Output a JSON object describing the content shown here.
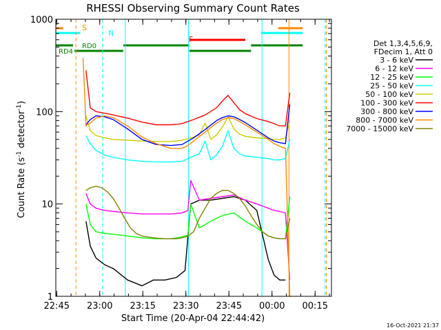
{
  "chart_data": {
    "type": "line",
    "title": "RHESSI Observing Summary Count Rates",
    "xlabel": "Start Time (20-Apr-04 22:44:42)",
    "ylabel_main": "Count Rate (s",
    "ylabel_sup1": "-1",
    "ylabel_mid": " detector",
    "ylabel_sup2": "-1",
    "ylabel_end": ")",
    "yscale": "log",
    "ylim": [
      1,
      1000
    ],
    "x_range_minutes": [
      0,
      96
    ],
    "x_ticks": [
      {
        "label": "22:45",
        "t": 0.3
      },
      {
        "label": "23:00",
        "t": 15.3
      },
      {
        "label": "23:15",
        "t": 30.3
      },
      {
        "label": "23:30",
        "t": 45.3
      },
      {
        "label": "23:45",
        "t": 60.3
      },
      {
        "label": "00:00",
        "t": 75.3
      },
      {
        "label": "00:15",
        "t": 90.3
      }
    ],
    "y_ticks": [
      {
        "label": "1",
        "v": 1
      },
      {
        "label": "10",
        "v": 10
      },
      {
        "label": "100",
        "v": 100
      },
      {
        "label": "1000",
        "v": 1000
      }
    ],
    "legend_header": [
      "Det 1,3,4,5,6,9,",
      "FDecim 1, Att 0"
    ],
    "series": [
      {
        "name": "3 - 6 keV",
        "color": "#000000",
        "x": [
          0,
          9.5,
          10.5,
          12,
          14,
          17,
          20,
          25,
          30,
          34,
          38,
          42,
          45,
          47,
          50,
          54,
          58,
          62,
          66,
          70,
          74,
          76,
          78,
          80,
          82,
          84
        ],
        "y": [
          null,
          null,
          6.5,
          3.5,
          2.6,
          2.2,
          2.0,
          1.5,
          1.3,
          1.5,
          1.5,
          1.6,
          1.9,
          10,
          11,
          11,
          11.5,
          12,
          11,
          8.5,
          2.5,
          1.7,
          1.5,
          1.5,
          null,
          null
        ]
      },
      {
        "name": "6 - 12 keV",
        "color": "#ff00ff",
        "x": [
          10.5,
          12,
          14,
          17,
          20,
          25,
          30,
          35,
          40,
          44,
          46,
          47,
          50,
          54,
          58,
          62,
          66,
          70,
          74,
          76,
          78,
          80,
          81.5
        ],
        "y": [
          13,
          10,
          9,
          8.5,
          8.3,
          8,
          7.8,
          7.8,
          7.8,
          8,
          8.5,
          18,
          11,
          11.5,
          12,
          12.5,
          11,
          10,
          9,
          8.5,
          8.3,
          8,
          1.5
        ]
      },
      {
        "name": "12 - 25 keV",
        "color": "#00ff00",
        "x": [
          10.5,
          12,
          14,
          17,
          20,
          25,
          30,
          35,
          40,
          44,
          46,
          47,
          50,
          54,
          58,
          62,
          66,
          70,
          74,
          76,
          78,
          80,
          81.5
        ],
        "y": [
          10,
          6,
          5,
          4.8,
          4.7,
          4.5,
          4.3,
          4.2,
          4.2,
          4.4,
          4.6,
          10,
          5.5,
          6.5,
          7.5,
          8,
          6.5,
          5.5,
          4.5,
          4.3,
          4.2,
          4.2,
          12
        ]
      },
      {
        "name": "25 - 50 keV",
        "color": "#00ffff",
        "x": [
          10.5,
          12,
          14,
          17,
          20,
          25,
          30,
          35,
          40,
          44,
          46,
          47,
          50,
          52,
          54,
          56,
          58,
          60,
          62,
          64,
          66,
          70,
          74,
          76,
          78,
          80,
          81.5
        ],
        "y": [
          55,
          45,
          38,
          34,
          32,
          30,
          29,
          28.5,
          28.5,
          29,
          31,
          32,
          35,
          48,
          30,
          34,
          42,
          62,
          40,
          35,
          33,
          32,
          31,
          30,
          30,
          31,
          50
        ]
      },
      {
        "name": "50 - 100 keV",
        "color": "#cccc00",
        "x": [
          10.5,
          12,
          14,
          17,
          20,
          25,
          30,
          35,
          40,
          44,
          46,
          48,
          50,
          52,
          54,
          56,
          58,
          60,
          62,
          64,
          66,
          70,
          74,
          76,
          78,
          80,
          81.5
        ],
        "y": [
          90,
          62,
          55,
          52,
          50,
          49,
          48,
          47.5,
          47.5,
          49,
          51,
          53,
          56,
          75,
          50,
          56,
          68,
          88,
          65,
          57,
          54,
          52,
          51,
          50,
          50,
          52,
          80
        ]
      },
      {
        "name": "100 - 300 keV",
        "color": "#ff0000",
        "x": [
          10.5,
          12,
          14,
          17,
          20,
          25,
          30,
          35,
          40,
          44,
          46,
          48,
          52,
          56,
          58,
          60,
          62,
          64,
          66,
          70,
          74,
          76,
          78,
          80,
          81.5
        ],
        "y": [
          280,
          110,
          100,
          96,
          92,
          85,
          77,
          72,
          72,
          74,
          78,
          82,
          92,
          110,
          130,
          150,
          125,
          105,
          95,
          84,
          78,
          74,
          70,
          70,
          160
        ]
      },
      {
        "name": "300 - 800 keV",
        "color": "#0000ff",
        "x": [
          10.5,
          12,
          14,
          17,
          20,
          25,
          30,
          35,
          40,
          44,
          46,
          48,
          52,
          56,
          58,
          60,
          62,
          64,
          66,
          70,
          74,
          76,
          78,
          80,
          81.5
        ],
        "y": [
          72,
          82,
          90,
          88,
          82,
          65,
          50,
          44,
          43,
          44,
          48,
          52,
          64,
          80,
          86,
          90,
          88,
          82,
          76,
          63,
          52,
          48,
          46,
          45,
          120
        ]
      },
      {
        "name": "800 - 7000 keV",
        "color": "#ff8800",
        "x": [
          9.5,
          10.5,
          12,
          14,
          17,
          20,
          25,
          30,
          35,
          40,
          44,
          46,
          48,
          52,
          56,
          58,
          60,
          62,
          64,
          66,
          70,
          74,
          76,
          78,
          80,
          81.5,
          82
        ],
        "y": [
          380,
          70,
          75,
          85,
          90,
          86,
          70,
          53,
          45,
          40,
          40,
          43,
          48,
          60,
          75,
          82,
          86,
          84,
          78,
          72,
          60,
          50,
          45,
          42,
          40,
          1,
          1
        ]
      },
      {
        "name": "7000 - 15000 keV",
        "color": "#808000",
        "x": [
          10.5,
          12,
          14,
          16,
          18,
          20,
          22,
          24,
          26,
          28,
          30,
          34,
          38,
          42,
          44,
          46,
          48,
          50,
          52,
          54,
          56,
          58,
          60,
          62,
          64,
          66,
          68,
          70,
          72,
          74,
          76,
          78,
          80,
          81.5
        ],
        "y": [
          14,
          15,
          15.5,
          15,
          13.5,
          11.5,
          9,
          7,
          5.5,
          4.8,
          4.5,
          4.3,
          4.2,
          4.2,
          4.3,
          4.5,
          5,
          7,
          9,
          11.5,
          13,
          14,
          14,
          13,
          11.5,
          9.5,
          7.5,
          6,
          5,
          4.5,
          4.3,
          4.2,
          4.2,
          7
        ]
      }
    ],
    "annotations": [
      {
        "text": "S",
        "color": "#ff8800"
      },
      {
        "text": "N",
        "color": "#00ffff"
      },
      {
        "text": "F",
        "color": "#ff0000"
      },
      {
        "text": "RD0",
        "color": "#008000"
      },
      {
        "text": "RD4",
        "color": "#008000"
      }
    ],
    "timestamp": "16-Oct-2021 21:37"
  }
}
